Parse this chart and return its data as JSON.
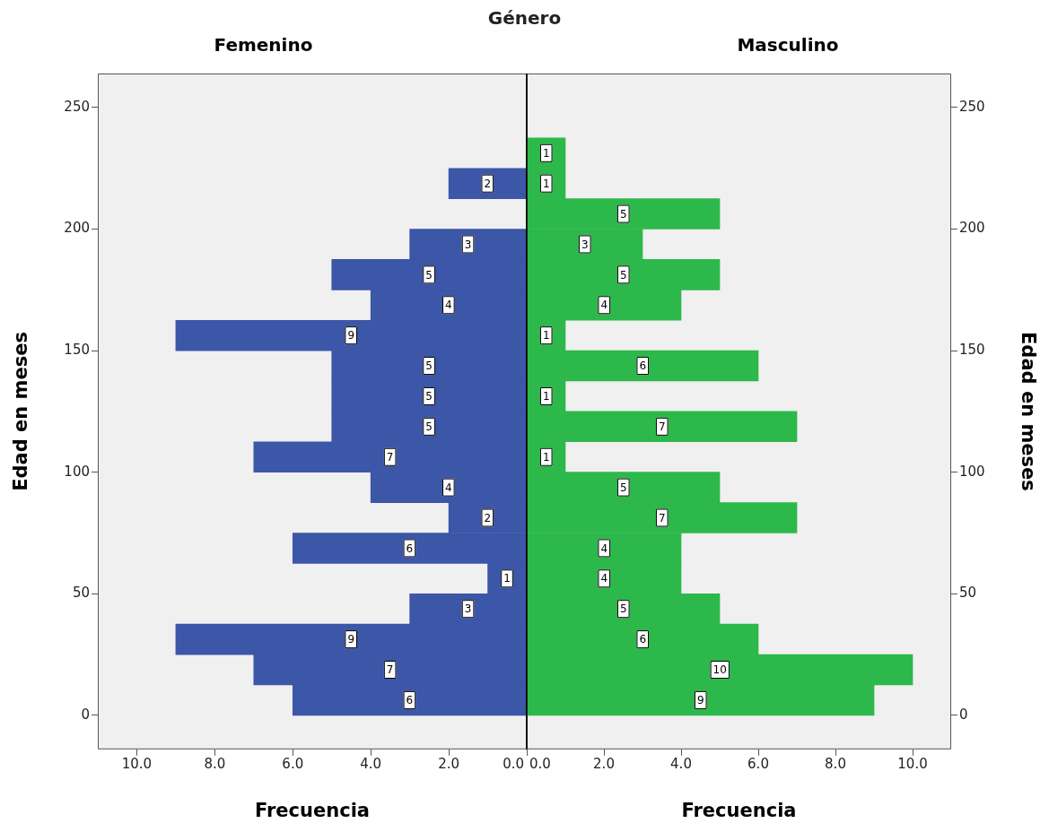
{
  "chart_data": [
    {
      "type": "histogram",
      "orientation": "horizontal",
      "title": "Género",
      "subtitle": "Femenino",
      "xlabel": "Frecuencia",
      "ylabel": "Edad en meses",
      "color": "#3c56a8",
      "bins": [
        0,
        12.5,
        25,
        37.5,
        50,
        62.5,
        75,
        87.5,
        100,
        112.5,
        125,
        137.5,
        150,
        162.5,
        175,
        187.5,
        200,
        212.5,
        225,
        237.5
      ],
      "values": [
        6,
        7,
        9,
        3,
        1,
        6,
        2,
        4,
        7,
        5,
        5,
        5,
        9,
        4,
        5,
        3,
        0,
        2,
        0
      ],
      "value_labels": [
        "6",
        "7",
        "9",
        "3",
        "1",
        "6",
        "2",
        "4",
        "7",
        "5",
        "5",
        "5",
        "9",
        "4",
        "5",
        "3",
        null,
        "2",
        null
      ],
      "xlim": [
        11,
        0
      ],
      "xticks": [
        {
          "value": 0,
          "label": "0.0"
        },
        {
          "value": 2,
          "label": "2.0"
        },
        {
          "value": 4,
          "label": "4.0"
        },
        {
          "value": 6,
          "label": "6.0"
        },
        {
          "value": 8,
          "label": "8.0"
        },
        {
          "value": 10,
          "label": "10.0"
        }
      ],
      "ylim": [
        -14,
        264
      ],
      "yticks": [
        0,
        50,
        100,
        150,
        200,
        250
      ]
    },
    {
      "type": "histogram",
      "orientation": "horizontal",
      "subtitle": "Masculino",
      "xlabel": "Frecuencia",
      "ylabel": "Edad en meses",
      "color": "#2db84b",
      "bins": [
        0,
        12.5,
        25,
        37.5,
        50,
        62.5,
        75,
        87.5,
        100,
        112.5,
        125,
        137.5,
        150,
        162.5,
        175,
        187.5,
        200,
        212.5,
        225,
        237.5
      ],
      "values": [
        9,
        10,
        6,
        5,
        4,
        4,
        7,
        5,
        1,
        7,
        1,
        6,
        1,
        4,
        5,
        3,
        5,
        1,
        1
      ],
      "value_labels": [
        "9",
        "10",
        "6",
        "5",
        "4",
        "4",
        "7",
        "5",
        "1",
        "7",
        "1",
        "6",
        "1",
        "4",
        "5",
        "3",
        "5",
        "1",
        "1"
      ],
      "xlim": [
        0,
        11
      ],
      "xticks": [
        {
          "value": 0,
          "label": "0.0"
        },
        {
          "value": 2,
          "label": "2.0"
        },
        {
          "value": 4,
          "label": "4.0"
        },
        {
          "value": 6,
          "label": "6.0"
        },
        {
          "value": 8,
          "label": "8.0"
        },
        {
          "value": 10,
          "label": "10.0"
        }
      ],
      "ylim": [
        -14,
        264
      ],
      "yticks": [
        0,
        50,
        100,
        150,
        200,
        250
      ]
    }
  ]
}
